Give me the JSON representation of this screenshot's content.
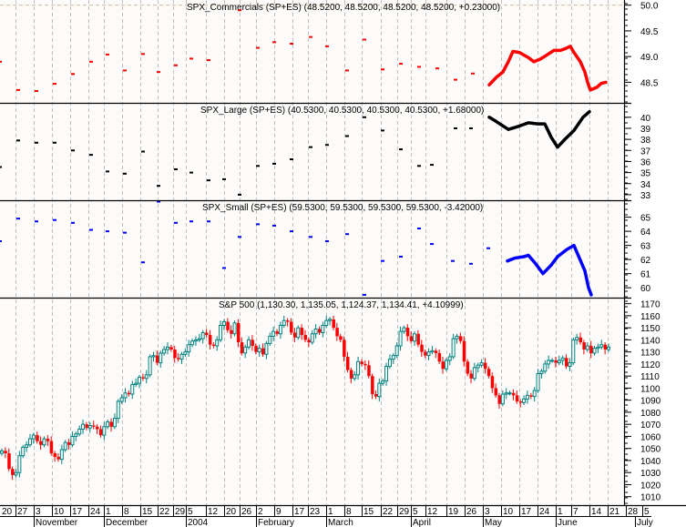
{
  "chart_data": [
    {
      "type": "scatter",
      "title": "SPX_Commercials (SP+ES) (48.5200, 48.5200, 48.5200, 48.5200, +0.23000)",
      "yticks": [
        "50.0",
        "49.5",
        "49.0",
        "48.5"
      ],
      "ylim": [
        48.1,
        50.1
      ],
      "color": "#ff0000",
      "dots": [
        [
          0,
          48.9
        ],
        [
          20,
          48.35
        ],
        [
          40,
          48.33
        ],
        [
          60,
          48.47
        ],
        [
          80,
          48.66
        ],
        [
          100,
          48.9
        ],
        [
          118,
          49.04
        ],
        [
          137,
          48.73
        ],
        [
          157,
          49.05
        ],
        [
          174,
          48.7
        ],
        [
          193,
          48.83
        ],
        [
          210,
          48.96
        ],
        [
          229,
          48.93
        ],
        [
          263,
          49.9
        ],
        [
          283,
          49.17
        ],
        [
          301,
          49.28
        ],
        [
          320,
          49.25
        ],
        [
          341,
          49.38
        ],
        [
          359,
          49.2
        ],
        [
          381,
          48.73
        ],
        [
          400,
          49.33
        ],
        [
          420,
          48.75
        ],
        [
          440,
          48.86
        ],
        [
          460,
          48.8
        ],
        [
          480,
          48.77
        ],
        [
          500,
          48.55
        ],
        [
          519,
          48.67
        ]
      ],
      "line": [
        [
          537,
          48.45
        ],
        [
          545,
          48.6
        ],
        [
          552,
          48.7
        ],
        [
          558,
          48.9
        ],
        [
          563,
          49.1
        ],
        [
          570,
          49.08
        ],
        [
          580,
          48.98
        ],
        [
          586,
          48.9
        ],
        [
          593,
          48.95
        ],
        [
          602,
          49.05
        ],
        [
          608,
          49.12
        ],
        [
          615,
          49.12
        ],
        [
          620,
          49.15
        ],
        [
          626,
          49.2
        ],
        [
          630,
          49.08
        ],
        [
          637,
          48.9
        ],
        [
          642,
          48.7
        ],
        [
          645,
          48.5
        ],
        [
          648,
          48.35
        ],
        [
          655,
          48.4
        ],
        [
          660,
          48.48
        ],
        [
          665,
          48.5
        ]
      ]
    },
    {
      "type": "scatter",
      "title": "SPX_Large (SP+ES) (40.5300, 40.5300, 40.5300, 40.5300, +1.68000)",
      "yticks": [
        "40",
        "39",
        "38",
        "37",
        "36",
        "35",
        "34",
        "33"
      ],
      "ylim": [
        32.5,
        41.3
      ],
      "color": "#000000",
      "dots": [
        [
          0,
          35.5
        ],
        [
          20,
          37.9
        ],
        [
          40,
          37.7
        ],
        [
          60,
          37.7
        ],
        [
          80,
          37.0
        ],
        [
          100,
          36.6
        ],
        [
          118,
          35.1
        ],
        [
          137,
          34.9
        ],
        [
          157,
          36.9
        ],
        [
          174,
          33.8
        ],
        [
          193,
          35.3
        ],
        [
          210,
          35.0
        ],
        [
          229,
          34.3
        ],
        [
          246,
          34.4
        ],
        [
          263,
          33.0
        ],
        [
          283,
          35.6
        ],
        [
          301,
          35.8
        ],
        [
          320,
          36.2
        ],
        [
          341,
          37.3
        ],
        [
          359,
          37.5
        ],
        [
          381,
          38.3
        ],
        [
          400,
          40.0
        ],
        [
          420,
          38.8
        ],
        [
          440,
          37.1
        ],
        [
          460,
          35.6
        ],
        [
          474,
          35.7
        ],
        [
          500,
          39.0
        ],
        [
          517,
          39.0
        ]
      ],
      "line": [
        [
          537,
          40.0
        ],
        [
          545,
          39.6
        ],
        [
          558,
          38.9
        ],
        [
          570,
          39.2
        ],
        [
          580,
          39.5
        ],
        [
          590,
          39.4
        ],
        [
          598,
          39.4
        ],
        [
          605,
          38.2
        ],
        [
          612,
          37.3
        ],
        [
          620,
          38.0
        ],
        [
          630,
          38.8
        ],
        [
          640,
          40.0
        ],
        [
          647,
          40.5
        ]
      ]
    },
    {
      "type": "scatter",
      "title": "SPX_Small (SP+ES) (59.5300, 59.5300, 59.5300, 59.5300, -3.42000)",
      "yticks": [
        "65",
        "64",
        "63",
        "62",
        "61",
        "60"
      ],
      "ylim": [
        59.3,
        66.2
      ],
      "color": "#0000ff",
      "dots": [
        [
          0,
          63.3
        ],
        [
          20,
          64.9
        ],
        [
          40,
          64.7
        ],
        [
          60,
          64.8
        ],
        [
          80,
          64.6
        ],
        [
          100,
          64.1
        ],
        [
          118,
          64.0
        ],
        [
          137,
          63.9
        ],
        [
          157,
          61.8
        ],
        [
          174,
          66.1
        ],
        [
          193,
          64.6
        ],
        [
          210,
          64.7
        ],
        [
          229,
          64.7
        ],
        [
          246,
          61.4
        ],
        [
          263,
          63.6
        ],
        [
          283,
          64.5
        ],
        [
          301,
          64.4
        ],
        [
          320,
          64.0
        ],
        [
          341,
          63.6
        ],
        [
          359,
          63.3
        ],
        [
          381,
          63.8
        ],
        [
          400,
          59.5
        ],
        [
          420,
          61.9
        ],
        [
          440,
          62.2
        ],
        [
          460,
          64.2
        ],
        [
          474,
          63.1
        ],
        [
          497,
          61.9
        ],
        [
          517,
          61.7
        ],
        [
          536,
          62.8
        ]
      ],
      "line": [
        [
          557,
          61.9
        ],
        [
          565,
          62.1
        ],
        [
          575,
          62.2
        ],
        [
          580,
          62.3
        ],
        [
          588,
          61.7
        ],
        [
          596,
          61.0
        ],
        [
          605,
          61.6
        ],
        [
          612,
          62.2
        ],
        [
          622,
          62.7
        ],
        [
          630,
          63.0
        ],
        [
          636,
          62.1
        ],
        [
          642,
          61.2
        ],
        [
          646,
          60.0
        ],
        [
          649,
          59.5
        ]
      ]
    },
    {
      "type": "candlestick",
      "title": "S&P 500 (1,130.30, 1,135.05, 1,124.37, 1,134.41, +4.10999)",
      "yticks": [
        "1170",
        "1160",
        "1150",
        "1140",
        "1130",
        "1120",
        "1110",
        "1100",
        "1090",
        "1080",
        "1070",
        "1060",
        "1050",
        "1040",
        "1030",
        "1020",
        "1010"
      ],
      "ylim": [
        1003,
        1175
      ],
      "up_color": "#008080",
      "down_color": "#ff0000",
      "xlabel_days": [
        "20",
        "27",
        "3",
        "10",
        "17",
        "24",
        "1",
        "8",
        "15",
        "22",
        "29",
        "5",
        "12",
        "20",
        "26",
        "2",
        "9",
        "17",
        "23",
        "1",
        "8",
        "15",
        "22",
        "29",
        "5",
        "12",
        "19",
        "26",
        "3",
        "10",
        "17",
        "24",
        "1",
        "7",
        "14",
        "21",
        "28",
        "5"
      ],
      "xlabel_months": [
        "November",
        "December",
        "2004",
        "February",
        "March",
        "April",
        "May",
        "June",
        "July"
      ],
      "closes": [
        1048,
        1046,
        1033,
        1028,
        1030,
        1044,
        1051,
        1053,
        1058,
        1061,
        1056,
        1053,
        1058,
        1056,
        1046,
        1043,
        1041,
        1049,
        1055,
        1053,
        1060,
        1062,
        1066,
        1070,
        1067,
        1069,
        1068,
        1066,
        1061,
        1068,
        1072,
        1068,
        1075,
        1089,
        1092,
        1096,
        1095,
        1103,
        1104,
        1109,
        1108,
        1111,
        1126,
        1127,
        1121,
        1129,
        1132,
        1134,
        1132,
        1125,
        1124,
        1128,
        1130,
        1136,
        1139,
        1140,
        1141,
        1146,
        1144,
        1136,
        1135,
        1140,
        1152,
        1155,
        1148,
        1145,
        1154,
        1138,
        1129,
        1134,
        1140,
        1135,
        1130,
        1133,
        1128,
        1137,
        1143,
        1147,
        1145,
        1152,
        1156,
        1155,
        1146,
        1142,
        1150,
        1144,
        1140,
        1138,
        1145,
        1149,
        1146,
        1152,
        1156,
        1157,
        1150,
        1143,
        1140,
        1126,
        1115,
        1108,
        1111,
        1122,
        1120,
        1119,
        1110,
        1095,
        1093,
        1104,
        1106,
        1118,
        1124,
        1127,
        1135,
        1147,
        1150,
        1143,
        1139,
        1145,
        1136,
        1130,
        1127,
        1130,
        1131,
        1129,
        1122,
        1116,
        1123,
        1126,
        1141,
        1143,
        1139,
        1122,
        1112,
        1108,
        1117,
        1119,
        1121,
        1116,
        1110,
        1100,
        1094,
        1087,
        1095,
        1096,
        1096,
        1094,
        1089,
        1088,
        1091,
        1094,
        1093,
        1098,
        1112,
        1114,
        1120,
        1123,
        1123,
        1121,
        1123,
        1125,
        1118,
        1121,
        1140,
        1142,
        1138,
        1132,
        1135,
        1129,
        1133,
        1134,
        1136,
        1132,
        1134
      ]
    }
  ]
}
